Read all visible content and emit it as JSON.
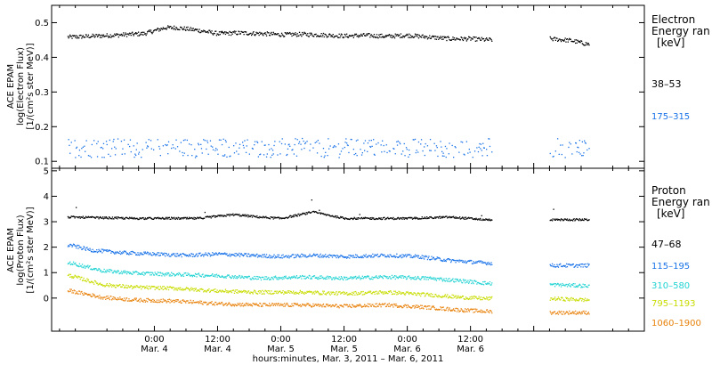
{
  "chart_data": [
    {
      "type": "scatter",
      "panel": "electron",
      "ylabel_lines": [
        "ACE EPAM",
        "log(Electron Flux)",
        "[1/(cm²s ster MeV)]"
      ],
      "ylim": [
        0.08,
        0.55
      ],
      "yticks": [
        0.1,
        0.2,
        0.3,
        0.4,
        0.5
      ],
      "ytick_labels": [
        "0.1",
        "0.2",
        "0.3",
        "0.4",
        "0.5"
      ],
      "legend_title": [
        "Electron",
        "Energy ran",
        "[keV]"
      ],
      "legend_placement": "right",
      "data_gap": {
        "start": 64.0,
        "end": 75.0
      },
      "series": [
        {
          "name": "38–53",
          "color": "#000000",
          "points": [
            [
              -16,
              0.46
            ],
            [
              -8,
              0.465
            ],
            [
              -2,
              0.47
            ],
            [
              2,
              0.487
            ],
            [
              4,
              0.487
            ],
            [
              8,
              0.48
            ],
            [
              12,
              0.47
            ],
            [
              16,
              0.472
            ],
            [
              20,
              0.47
            ],
            [
              24,
              0.467
            ],
            [
              28,
              0.468
            ],
            [
              32,
              0.466
            ],
            [
              36,
              0.463
            ],
            [
              40,
              0.465
            ],
            [
              44,
              0.462
            ],
            [
              48,
              0.465
            ],
            [
              52,
              0.46
            ],
            [
              56,
              0.455
            ],
            [
              60,
              0.455
            ],
            [
              63,
              0.452
            ],
            [
              75,
              0.455
            ],
            [
              79,
              0.45
            ],
            [
              82,
              0.44
            ]
          ]
        },
        {
          "name": "175–315",
          "color": "#1a73e8",
          "points": [
            [
              -16,
              0.14
            ],
            [
              0,
              0.14
            ],
            [
              16,
              0.14
            ],
            [
              32,
              0.14
            ],
            [
              48,
              0.14
            ],
            [
              63,
              0.14
            ],
            [
              75,
              0.14
            ],
            [
              82,
              0.14
            ]
          ]
        }
      ]
    },
    {
      "type": "scatter",
      "panel": "proton",
      "ylabel_lines": [
        "ACE EPAM",
        "log(Proton Flux)",
        "[1/(cm²s ster MeV)]"
      ],
      "ylim": [
        -1.3,
        5.1
      ],
      "yticks": [
        0,
        1,
        2,
        3,
        4,
        5
      ],
      "ytick_labels": [
        "0",
        "1",
        "2",
        "3",
        "4",
        "5"
      ],
      "xlim": [
        -19.5,
        93.0
      ],
      "xticks": [
        0,
        12,
        24,
        36,
        48,
        60,
        72
      ],
      "xtick_labels": [
        [
          "0:00",
          "Mar. 4"
        ],
        [
          "12:00",
          "Mar. 4"
        ],
        [
          "0:00",
          "Mar. 5"
        ],
        [
          "12:00",
          "Mar. 5"
        ],
        [
          "0:00",
          "Mar. 6"
        ],
        [
          "12:00",
          "Mar. 6"
        ]
      ],
      "xtick_label_positions": [
        0,
        12,
        24,
        36,
        48,
        60
      ],
      "xlabel": "hours:minutes, Mar.  3, 2011 – Mar.  6, 2011",
      "legend_title": [
        "Proton",
        "Energy ran",
        "[keV]"
      ],
      "legend_placement": "right",
      "data_gap": {
        "start": 64.0,
        "end": 75.0
      },
      "series": [
        {
          "name": "47–68",
          "color": "#000000",
          "points": [
            [
              -16,
              3.2
            ],
            [
              -4,
              3.15
            ],
            [
              8,
              3.15
            ],
            [
              15,
              3.3
            ],
            [
              20,
              3.2
            ],
            [
              24,
              3.15
            ],
            [
              30,
              3.4
            ],
            [
              36,
              3.15
            ],
            [
              48,
              3.15
            ],
            [
              56,
              3.2
            ],
            [
              63,
              3.1
            ],
            [
              75,
              3.1
            ],
            [
              82,
              3.1
            ]
          ]
        },
        {
          "name": "115–195",
          "color": "#1a73e8",
          "points": [
            [
              -16,
              2.1
            ],
            [
              -12,
              1.9
            ],
            [
              -6,
              1.8
            ],
            [
              0,
              1.75
            ],
            [
              6,
              1.7
            ],
            [
              12,
              1.75
            ],
            [
              18,
              1.7
            ],
            [
              24,
              1.65
            ],
            [
              30,
              1.7
            ],
            [
              36,
              1.65
            ],
            [
              44,
              1.7
            ],
            [
              50,
              1.65
            ],
            [
              56,
              1.5
            ],
            [
              63,
              1.4
            ],
            [
              75,
              1.3
            ],
            [
              82,
              1.3
            ]
          ]
        },
        {
          "name": "310–580",
          "color": "#22d3d3",
          "points": [
            [
              -16,
              1.4
            ],
            [
              -10,
              1.1
            ],
            [
              -4,
              1.0
            ],
            [
              4,
              0.95
            ],
            [
              12,
              0.9
            ],
            [
              20,
              0.8
            ],
            [
              28,
              0.85
            ],
            [
              36,
              0.8
            ],
            [
              44,
              0.85
            ],
            [
              52,
              0.8
            ],
            [
              58,
              0.7
            ],
            [
              63,
              0.6
            ],
            [
              75,
              0.55
            ],
            [
              82,
              0.5
            ]
          ]
        },
        {
          "name": "795–1193",
          "color": "#c8dc00",
          "points": [
            [
              -16,
              0.9
            ],
            [
              -10,
              0.55
            ],
            [
              -4,
              0.45
            ],
            [
              4,
              0.4
            ],
            [
              12,
              0.3
            ],
            [
              20,
              0.25
            ],
            [
              28,
              0.25
            ],
            [
              36,
              0.2
            ],
            [
              44,
              0.25
            ],
            [
              52,
              0.15
            ],
            [
              58,
              0.05
            ],
            [
              63,
              0.0
            ],
            [
              75,
              0.0
            ],
            [
              82,
              -0.05
            ]
          ]
        },
        {
          "name": "1060–1900",
          "color": "#e8820c",
          "points": [
            [
              -16,
              0.3
            ],
            [
              -10,
              0.05
            ],
            [
              -4,
              -0.05
            ],
            [
              4,
              -0.1
            ],
            [
              12,
              -0.2
            ],
            [
              20,
              -0.25
            ],
            [
              28,
              -0.25
            ],
            [
              36,
              -0.3
            ],
            [
              44,
              -0.25
            ],
            [
              52,
              -0.35
            ],
            [
              58,
              -0.45
            ],
            [
              63,
              -0.5
            ],
            [
              75,
              -0.55
            ],
            [
              82,
              -0.55
            ]
          ]
        }
      ]
    }
  ]
}
